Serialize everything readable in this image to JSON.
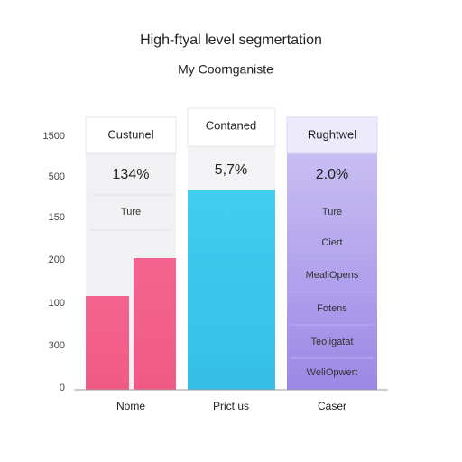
{
  "header": {
    "title": "High-ftyal level segmertation",
    "subtitle": "My Coornganiste"
  },
  "axis_labels": [
    "1500",
    "500",
    "150",
    "200",
    "100",
    "300",
    "0"
  ],
  "columns": [
    {
      "header": "Custunel",
      "value": "134%",
      "rows": [
        "Ture"
      ],
      "label": "Nome"
    },
    {
      "header": "Contaned",
      "value": "5,7%",
      "rows": [],
      "label": "Prict us"
    },
    {
      "header": "Rughtwel",
      "value": "2.0%",
      "rows": [
        "Ture",
        "Ciert",
        "MealiOpens",
        "Fotens",
        "Teoligatat",
        "WeliOpwert"
      ],
      "label": "Caser"
    }
  ]
}
